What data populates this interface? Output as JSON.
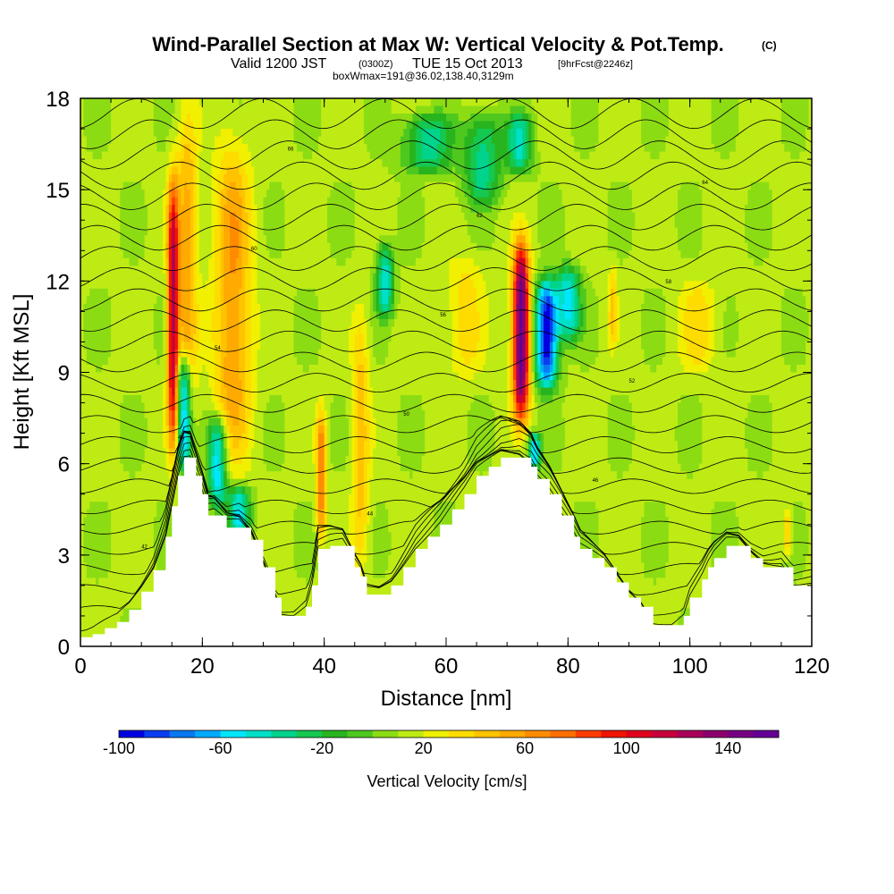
{
  "chart_data": {
    "type": "heatmap",
    "title": "Wind-Parallel Section at Max W: Vertical Velocity & Pot.Temp.",
    "title_mark": "(C)",
    "subtitle": {
      "valid": "Valid 1200 JST",
      "utc": "(0300Z)",
      "date": "TUE 15 Oct 2013",
      "forecast": "[9hrFcst@2246z]"
    },
    "info_line": "boxWmax=191@36.02,138.40,3129m",
    "xlabel": "Distance [nm]",
    "ylabel": "Height [Kft MSL]",
    "xlim": [
      0,
      120
    ],
    "ylim": [
      0,
      18
    ],
    "x_ticks": [
      "0",
      "20",
      "40",
      "60",
      "80",
      "100",
      "120"
    ],
    "y_ticks": [
      "0",
      "3",
      "6",
      "9",
      "12",
      "15",
      "18"
    ],
    "colorbar": {
      "label": "Vertical Velocity [cm/s]",
      "range": [
        -100,
        160
      ],
      "step": 10,
      "tick_labels": [
        "-100",
        "-60",
        "-20",
        "20",
        "60",
        "100",
        "140"
      ],
      "colors": [
        "#0000e0",
        "#0a3cf0",
        "#0a78f0",
        "#00aaff",
        "#00e6ff",
        "#00e0c8",
        "#00d48c",
        "#14c850",
        "#28b41e",
        "#4ec81e",
        "#8cdc14",
        "#beeb14",
        "#f0f000",
        "#ffdc00",
        "#ffc300",
        "#ffaa00",
        "#ff8c00",
        "#ff6e00",
        "#ff3c00",
        "#f01400",
        "#e0001e",
        "#c8003c",
        "#aa005a",
        "#8c006e",
        "#780082",
        "#640096"
      ]
    },
    "terrain_kft": [
      [
        0,
        0.3
      ],
      [
        2,
        0.4
      ],
      [
        4,
        0.6
      ],
      [
        6,
        0.8
      ],
      [
        8,
        1.2
      ],
      [
        10,
        1.8
      ],
      [
        12,
        2.5
      ],
      [
        14,
        3.6
      ],
      [
        15,
        4.6
      ],
      [
        16,
        5.6
      ],
      [
        17,
        6.2
      ],
      [
        18,
        6.2
      ],
      [
        19,
        5.6
      ],
      [
        20,
        5.0
      ],
      [
        21,
        4.3
      ],
      [
        22,
        4.3
      ],
      [
        24,
        3.9
      ],
      [
        26,
        3.9
      ],
      [
        28,
        3.5
      ],
      [
        30,
        2.6
      ],
      [
        32,
        1.6
      ],
      [
        33,
        1.0
      ],
      [
        35,
        1.0
      ],
      [
        37,
        1.3
      ],
      [
        38,
        2.0
      ],
      [
        39,
        3.2
      ],
      [
        41,
        3.3
      ],
      [
        43,
        3.3
      ],
      [
        45,
        2.6
      ],
      [
        46,
        2.3
      ],
      [
        47,
        1.7
      ],
      [
        49,
        1.7
      ],
      [
        51,
        2.0
      ],
      [
        53,
        2.6
      ],
      [
        55,
        3.2
      ],
      [
        57,
        3.6
      ],
      [
        59,
        4.0
      ],
      [
        61,
        4.5
      ],
      [
        63,
        5.0
      ],
      [
        65,
        5.6
      ],
      [
        67,
        5.9
      ],
      [
        69,
        6.2
      ],
      [
        72,
        6.2
      ],
      [
        74,
        5.9
      ],
      [
        75,
        5.5
      ],
      [
        77,
        5.0
      ],
      [
        79,
        4.3
      ],
      [
        81,
        3.6
      ],
      [
        82,
        3.2
      ],
      [
        84,
        2.9
      ],
      [
        86,
        2.6
      ],
      [
        88,
        2.1
      ],
      [
        90,
        1.6
      ],
      [
        92,
        1.3
      ],
      [
        94,
        0.7
      ],
      [
        97,
        0.7
      ],
      [
        99,
        1.0
      ],
      [
        100,
        1.6
      ],
      [
        102,
        2.2
      ],
      [
        103,
        2.6
      ],
      [
        104,
        2.9
      ],
      [
        106,
        3.3
      ],
      [
        108,
        3.3
      ],
      [
        110,
        2.9
      ],
      [
        112,
        2.6
      ],
      [
        115,
        2.6
      ],
      [
        117,
        2.0
      ],
      [
        120,
        2.0
      ]
    ],
    "updrafts": [
      {
        "x": 15.2,
        "ymin": 6.5,
        "ymax": 15.3,
        "w": 0.9,
        "peak": 120
      },
      {
        "x": 17.5,
        "ymin": 7.0,
        "ymax": 17.5,
        "w": 1.6,
        "peak": 55
      },
      {
        "x": 25,
        "ymin": 6.0,
        "ymax": 16.5,
        "w": 3.0,
        "peak": 60
      },
      {
        "x": 39.5,
        "ymin": 3.5,
        "ymax": 7.8,
        "w": 0.8,
        "peak": 70
      },
      {
        "x": 46,
        "ymin": 2.5,
        "ymax": 11,
        "w": 1.4,
        "peak": 45
      },
      {
        "x": 63,
        "ymin": 8.8,
        "ymax": 12.8,
        "w": 3.0,
        "peak": 35
      },
      {
        "x": 72.3,
        "ymin": 7.5,
        "ymax": 13.2,
        "w": 1.3,
        "peak": 160
      },
      {
        "x": 87.3,
        "ymin": 9.8,
        "ymax": 12.5,
        "w": 0.7,
        "peak": 40
      },
      {
        "x": 101.5,
        "ymin": 9.0,
        "ymax": 12.0,
        "w": 3.0,
        "peak": 35
      },
      {
        "x": 116,
        "ymin": 3.0,
        "ymax": 4.5,
        "w": 0.6,
        "peak": 50
      }
    ],
    "downdrafts": [
      {
        "x": 17,
        "ymin": 5.8,
        "ymax": 9.5,
        "w": 1.2,
        "peak": -80
      },
      {
        "x": 22.5,
        "ymin": 4.5,
        "ymax": 7.5,
        "w": 1.5,
        "peak": -60
      },
      {
        "x": 26,
        "ymin": 3.6,
        "ymax": 5.3,
        "w": 1.8,
        "peak": -50
      },
      {
        "x": 50,
        "ymin": 10.8,
        "ymax": 13.2,
        "w": 1.4,
        "peak": -45
      },
      {
        "x": 57,
        "ymin": 15.5,
        "ymax": 17.5,
        "w": 4.0,
        "peak": -35
      },
      {
        "x": 66,
        "ymin": 14.5,
        "ymax": 17.5,
        "w": 3.0,
        "peak": -35
      },
      {
        "x": 72,
        "ymin": 15.5,
        "ymax": 17.5,
        "w": 2.0,
        "peak": -40
      },
      {
        "x": 76.5,
        "ymin": 8.5,
        "ymax": 12.0,
        "w": 1.8,
        "peak": -100
      },
      {
        "x": 74.5,
        "ymin": 5.8,
        "ymax": 7.0,
        "w": 1.0,
        "peak": -60
      },
      {
        "x": 80,
        "ymin": 10.0,
        "ymax": 12.5,
        "w": 2.0,
        "peak": -50
      }
    ],
    "theta_contours": {
      "count": 26,
      "base": [
        0.5,
        1.0
      ],
      "top_spacing": 0.35,
      "labels": [
        "42",
        "44",
        "46",
        "48",
        "50",
        "52",
        "54",
        "56",
        "58",
        "60",
        "62",
        "64",
        "66"
      ]
    }
  }
}
